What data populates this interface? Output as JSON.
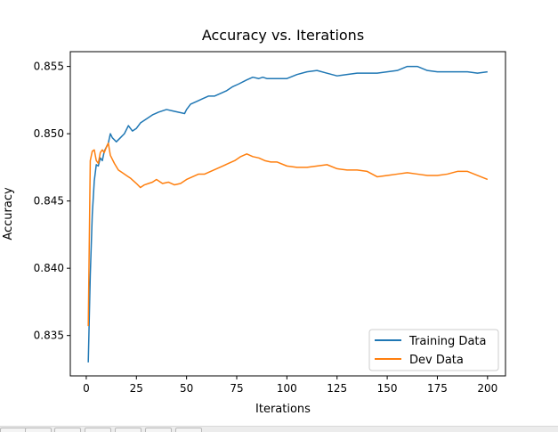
{
  "chart_data": {
    "type": "line",
    "title": "Accuracy vs. Iterations",
    "xlabel": "Iterations",
    "ylabel": "Accuracy",
    "xlim": [
      -7.95,
      208.95
    ],
    "ylim": [
      0.832,
      0.8561
    ],
    "xticks": [
      0,
      25,
      50,
      75,
      100,
      125,
      150,
      175,
      200
    ],
    "xtick_labels": [
      "0",
      "25",
      "50",
      "75",
      "100",
      "125",
      "150",
      "175",
      "200"
    ],
    "yticks": [
      0.835,
      0.84,
      0.845,
      0.85,
      0.855
    ],
    "ytick_labels": [
      "0.835",
      "0.840",
      "0.845",
      "0.850",
      "0.855"
    ],
    "grid": false,
    "legend_position": "lower-right",
    "series": [
      {
        "name": "Training Data",
        "color": "#1f77b4",
        "x": [
          1,
          2,
          3,
          4,
          5,
          6,
          7,
          8,
          9,
          10,
          11,
          12,
          13,
          15,
          17,
          19,
          21,
          23,
          25,
          27,
          30,
          33,
          36,
          40,
          43,
          46,
          49,
          50,
          52,
          55,
          58,
          61,
          64,
          67,
          70,
          73,
          76,
          80,
          83,
          86,
          88,
          90,
          95,
          100,
          105,
          110,
          115,
          120,
          125,
          130,
          135,
          140,
          145,
          150,
          155,
          160,
          165,
          170,
          175,
          180,
          185,
          190,
          195,
          200
        ],
        "y": [
          0.833,
          0.8395,
          0.844,
          0.8465,
          0.8477,
          0.8476,
          0.8482,
          0.848,
          0.8487,
          0.849,
          0.8493,
          0.85,
          0.8497,
          0.8494,
          0.8497,
          0.85,
          0.8506,
          0.8502,
          0.8504,
          0.8508,
          0.8511,
          0.8514,
          0.8516,
          0.8518,
          0.8517,
          0.8516,
          0.8515,
          0.8518,
          0.8522,
          0.8524,
          0.8526,
          0.8528,
          0.8528,
          0.853,
          0.8532,
          0.8535,
          0.8537,
          0.854,
          0.8542,
          0.8541,
          0.8542,
          0.8541,
          0.8541,
          0.8541,
          0.8544,
          0.8546,
          0.8547,
          0.8545,
          0.8543,
          0.8544,
          0.8545,
          0.8545,
          0.8545,
          0.8546,
          0.8547,
          0.855,
          0.855,
          0.8547,
          0.8546,
          0.8546,
          0.8546,
          0.8546,
          0.8545,
          0.8546
        ]
      },
      {
        "name": "Dev Data",
        "color": "#ff7f0e",
        "x": [
          1,
          2,
          3,
          4,
          5,
          6,
          7,
          8,
          9,
          10,
          11,
          12,
          14,
          16,
          18,
          20,
          22,
          25,
          27,
          29,
          31,
          33,
          35,
          38,
          41,
          44,
          47,
          50,
          53,
          56,
          59,
          62,
          65,
          68,
          71,
          74,
          77,
          80,
          83,
          86,
          89,
          92,
          95,
          100,
          105,
          110,
          115,
          120,
          125,
          130,
          135,
          140,
          145,
          150,
          155,
          160,
          165,
          170,
          175,
          180,
          185,
          190,
          195,
          200
        ],
        "y": [
          0.8357,
          0.848,
          0.8487,
          0.8488,
          0.848,
          0.8478,
          0.8486,
          0.8488,
          0.8486,
          0.849,
          0.8493,
          0.8484,
          0.8478,
          0.8473,
          0.8471,
          0.8469,
          0.8467,
          0.8463,
          0.846,
          0.8462,
          0.8463,
          0.8464,
          0.8466,
          0.8463,
          0.8464,
          0.8462,
          0.8463,
          0.8466,
          0.8468,
          0.847,
          0.847,
          0.8472,
          0.8474,
          0.8476,
          0.8478,
          0.848,
          0.8483,
          0.8485,
          0.8483,
          0.8482,
          0.848,
          0.8479,
          0.8479,
          0.8476,
          0.8475,
          0.8475,
          0.8476,
          0.8477,
          0.8474,
          0.8473,
          0.8473,
          0.8472,
          0.8468,
          0.8469,
          0.847,
          0.8471,
          0.847,
          0.8469,
          0.8469,
          0.847,
          0.8472,
          0.8472,
          0.8469,
          0.8466
        ]
      }
    ]
  }
}
